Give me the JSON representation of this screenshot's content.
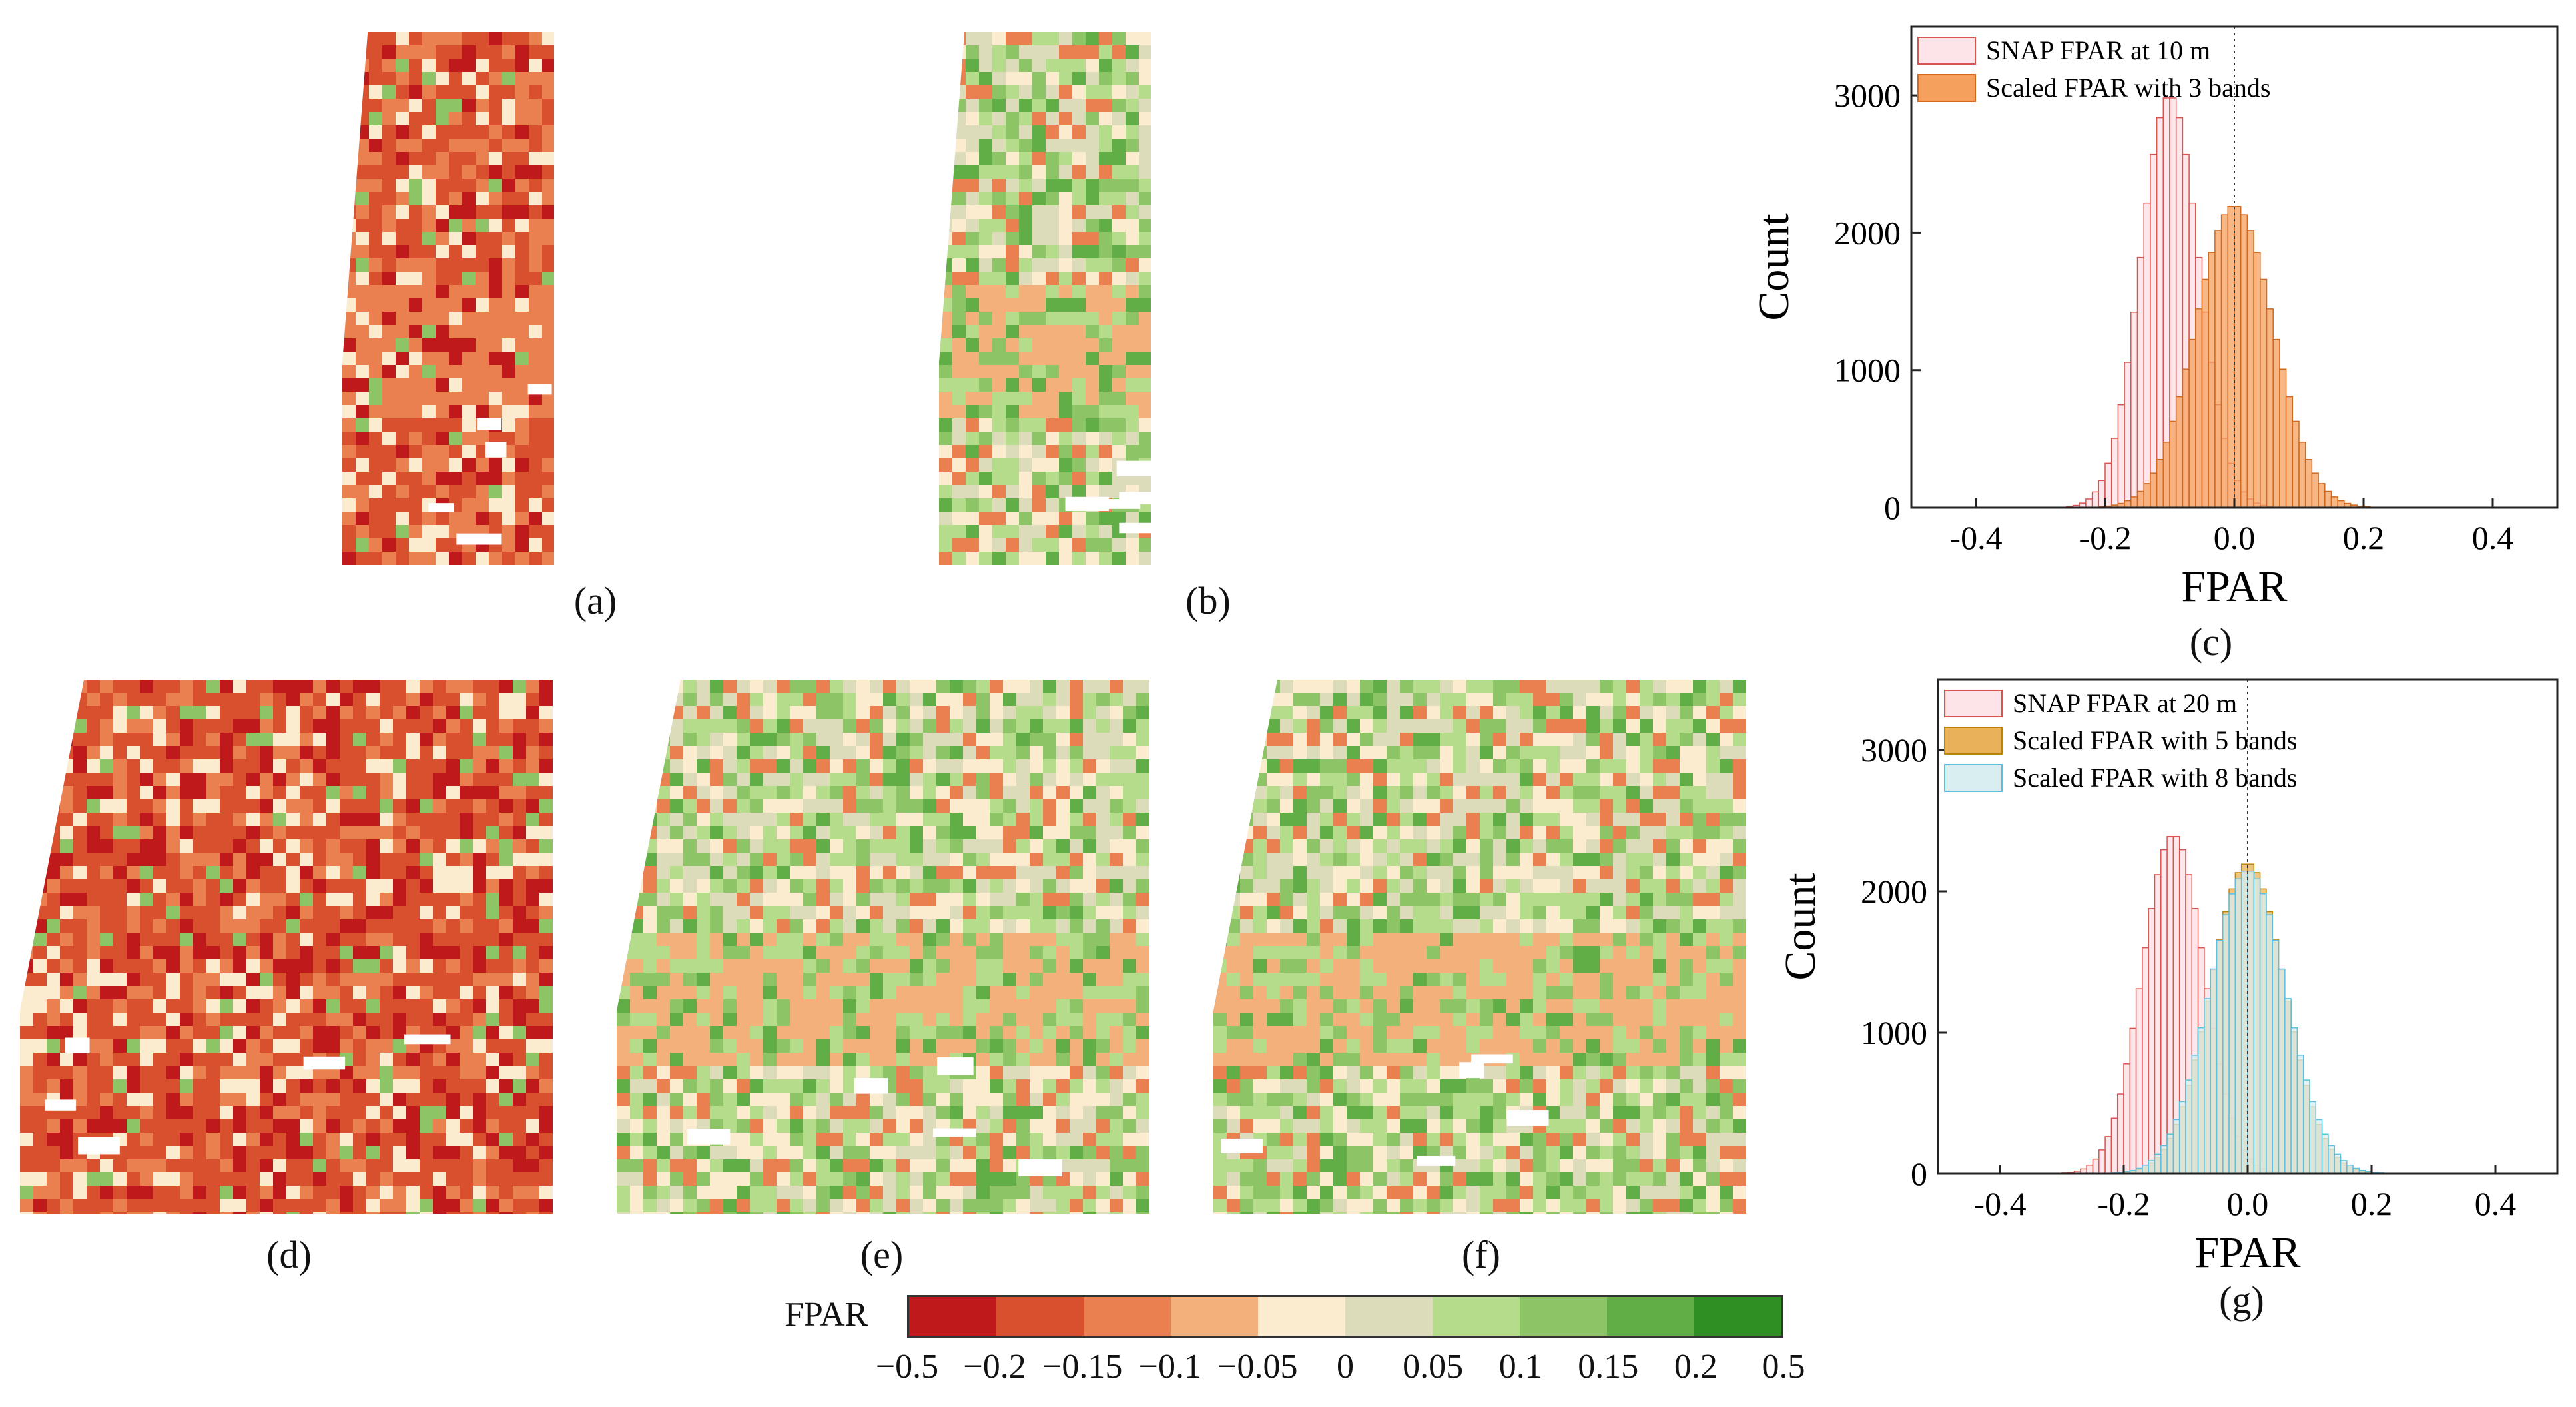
{
  "panels": {
    "a": "(a)",
    "b": "(b)",
    "c": "(c)",
    "d": "(d)",
    "e": "(e)",
    "f": "(f)",
    "g": "(g)"
  },
  "colorbar": {
    "title": "FPAR",
    "colors": [
      "#c0191c",
      "#d9502e",
      "#ea8050",
      "#f3b07a",
      "#fbecd0",
      "#dcdcbb",
      "#b4dc8a",
      "#8cc466",
      "#62ae46",
      "#2f8f23"
    ],
    "tick_labels": [
      "−0.5",
      "−0.2",
      "−0.15",
      "−0.1",
      "−0.05",
      "0",
      "0.05",
      "0.1",
      "0.15",
      "0.2",
      "0.5"
    ]
  },
  "chart_data": [
    {
      "type": "bar",
      "panel": "(c)",
      "xlabel": "FPAR",
      "ylabel": "Count",
      "xlim": [
        -0.5,
        0.5
      ],
      "ylim": [
        0,
        3500
      ],
      "xticks": [
        -0.4,
        -0.2,
        0.0,
        0.2,
        0.4
      ],
      "xtick_labels": [
        "-0.4",
        "-0.2",
        "0.0",
        "0.2",
        "0.4"
      ],
      "yticks": [
        0,
        1000,
        2000,
        3000
      ],
      "reference_line_x": 0.0,
      "legend_position": "top-left",
      "series": [
        {
          "name": "SNAP FPAR at 10 m",
          "fill": "#fde4e8",
          "edge": "#d9534f",
          "mean": -0.1,
          "sd": 0.045,
          "peak": 3000
        },
        {
          "name": "Scaled FPAR with 3 bands",
          "fill": "#f6a05e",
          "edge": "#d2691e",
          "mean": 0.0,
          "sd": 0.06,
          "peak": 2200
        }
      ]
    },
    {
      "type": "bar",
      "panel": "(g)",
      "xlabel": "FPAR",
      "ylabel": "Count",
      "xlim": [
        -0.5,
        0.5
      ],
      "ylim": [
        0,
        3500
      ],
      "xticks": [
        -0.4,
        -0.2,
        0.0,
        0.2,
        0.4
      ],
      "xtick_labels": [
        "-0.4",
        "-0.2",
        "0.0",
        "0.2",
        "0.4"
      ],
      "yticks": [
        0,
        1000,
        2000,
        3000
      ],
      "reference_line_x": 0.0,
      "legend_position": "top-left",
      "series": [
        {
          "name": "SNAP FPAR at 20 m",
          "fill": "#fde4e8",
          "edge": "#d9534f",
          "mean": -0.12,
          "sd": 0.05,
          "peak": 2400
        },
        {
          "name": "Scaled FPAR with 5 bands",
          "fill": "#e8b15a",
          "edge": "#b8860b",
          "mean": 0.0,
          "sd": 0.06,
          "peak": 2200
        },
        {
          "name": "Scaled FPAR with 8 bands",
          "fill": "#d8eef0",
          "edge": "#5bc0de",
          "mean": 0.0,
          "sd": 0.062,
          "peak": 2150
        }
      ]
    }
  ]
}
